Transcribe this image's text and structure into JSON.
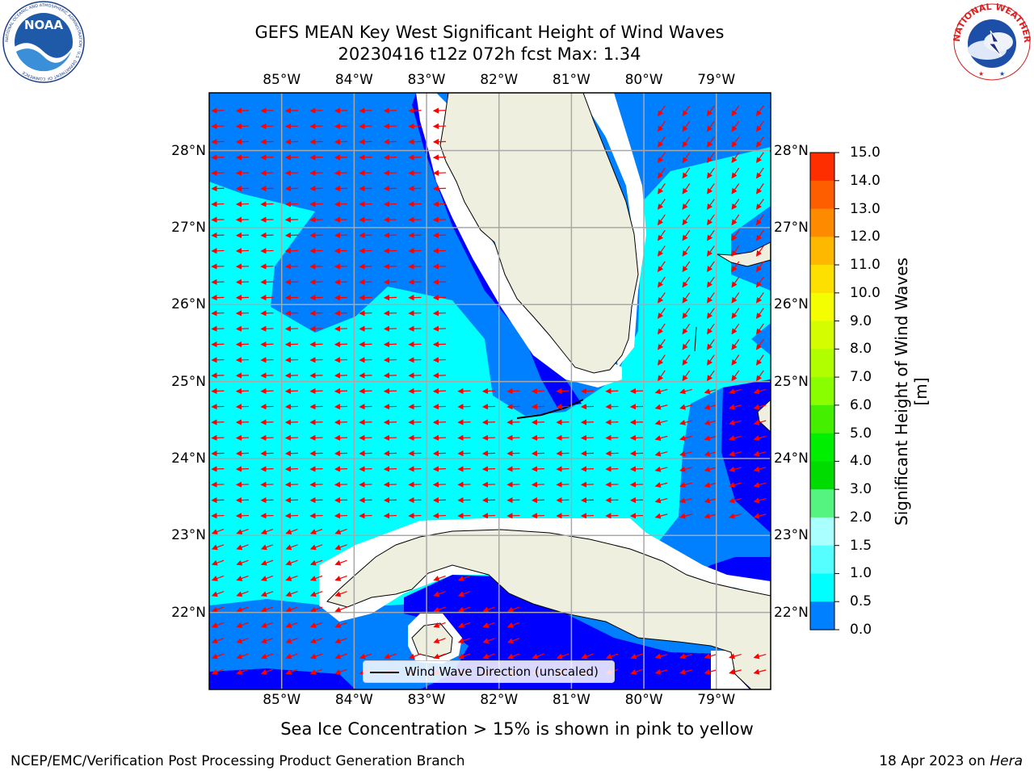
{
  "header": {
    "title_line1": "GEFS MEAN Key West Significant Height of Wind Waves",
    "title_line2": "20230416 t12z 072h fcst   Max: 1.34"
  },
  "logos": {
    "noaa": "NOAA",
    "noaa_ring": "NATIONAL OCEANIC AND ATMOSPHERIC ADMINISTRATION · U.S. DEPARTMENT OF COMMERCE",
    "nws_ring": "NATIONAL WEATHER SERVICE"
  },
  "map": {
    "lon_labels": [
      "85°W",
      "84°W",
      "83°W",
      "82°W",
      "81°W",
      "80°W",
      "79°W"
    ],
    "lat_labels": [
      "28°N",
      "27°N",
      "26°N",
      "25°N",
      "24°N",
      "23°N",
      "22°N"
    ],
    "lon_values": [
      -85,
      -84,
      -83,
      -82,
      -81,
      -80,
      -79
    ],
    "lat_values": [
      28,
      27,
      26,
      25,
      24,
      23,
      22
    ],
    "extent": {
      "lon_min": -86,
      "lon_max": -78.25,
      "lat_min": 21,
      "lat_max": 28.75
    },
    "grid": true,
    "land_color": "#efefdf",
    "arrow_color": "#ff0000",
    "legend_entry": "Wind Wave Direction (unscaled)"
  },
  "colorbar": {
    "title": "Significant Height of Wind Waves [m]",
    "levels": [
      "15.0",
      "14.0",
      "13.0",
      "12.0",
      "11.0",
      "10.0",
      "9.0",
      "8.0",
      "7.0",
      "6.0",
      "5.0",
      "4.0",
      "3.0",
      "2.0",
      "1.5",
      "1.0",
      "0.5",
      "0.0"
    ],
    "colors": [
      "#fe0000",
      "#fe2e00",
      "#fe5e00",
      "#fe8a00",
      "#feb800",
      "#fee000",
      "#f4fe00",
      "#d4fe00",
      "#b0fe00",
      "#88fe00",
      "#44f000",
      "#00ee00",
      "#00dc00",
      "#55f480",
      "#aaffff",
      "#55ffff",
      "#00ffff",
      "#0080ff",
      "#0000ff"
    ]
  },
  "notes": {
    "ice": "Sea Ice Concentration > 15% is shown in pink to yellow"
  },
  "footer": {
    "left": "NCEP/EMC/Verification Post Processing Product Generation Branch",
    "right_date": "18 Apr 2023 on ",
    "right_host": "Hera"
  }
}
